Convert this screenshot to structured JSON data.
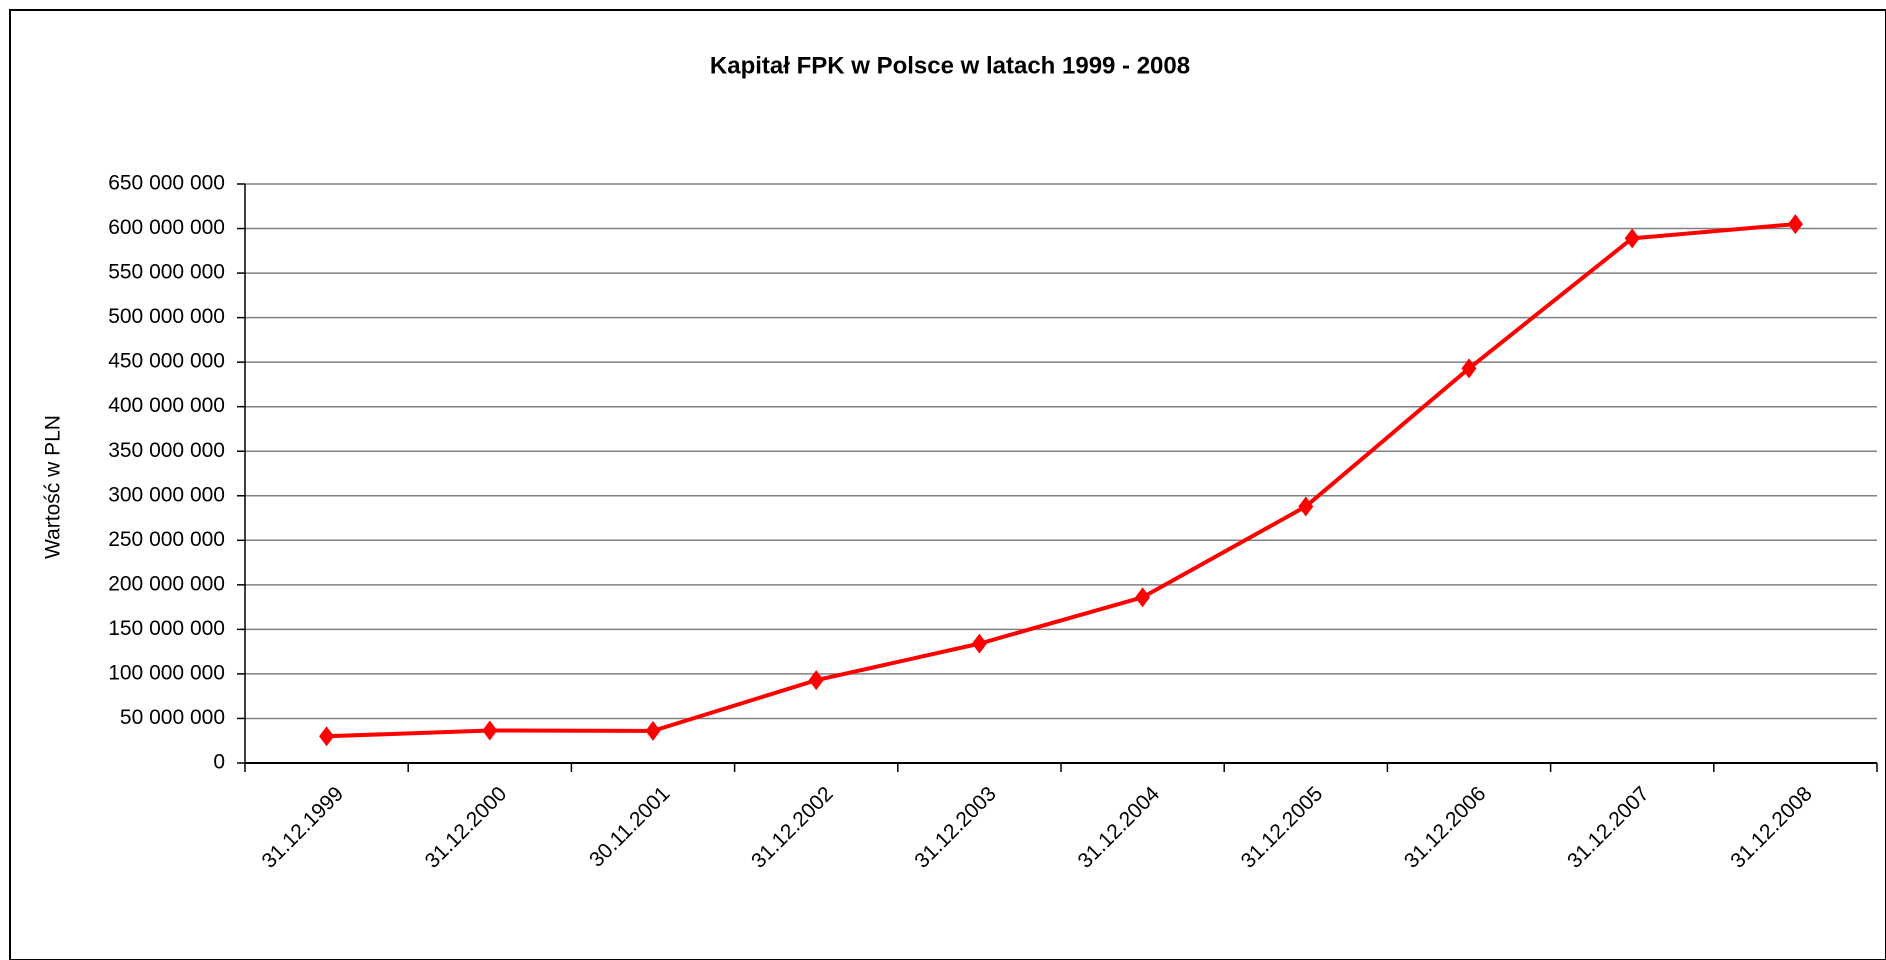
{
  "chart_data": {
    "type": "line",
    "title": "Kapitał FPK w Polsce w latach 1999 - 2008",
    "y_label": "Wartość w PLN",
    "categories": [
      "31.12.1999",
      "31.12.2000",
      "30.11.2001",
      "31.12.2002",
      "31.12.2003",
      "31.12.2004",
      "31.12.2005",
      "31.12.2006",
      "31.12.2007",
      "31.12.2008"
    ],
    "series": [
      {
        "color": "#ff0000",
        "values": [
          30000000,
          36500000,
          36000000,
          93000000,
          134000000,
          186000000,
          288000000,
          443000000,
          589000000,
          605000000
        ]
      }
    ],
    "ylim": [
      0,
      650000000
    ],
    "yticks": [
      0,
      {
        "value": 50000000,
        "label": "50 000 000"
      },
      {
        "value": 100000000,
        "label": "100 000 000"
      },
      {
        "value": 150000000,
        "label": "150 000 000"
      },
      {
        "value": 200000000,
        "label": "200 000 000"
      },
      {
        "value": 250000000,
        "label": "250 000 000"
      },
      {
        "value": 300000000,
        "label": "300 000 000"
      },
      {
        "value": 350000000,
        "label": "350 000 000"
      },
      {
        "value": 400000000,
        "label": "400 000 000"
      },
      {
        "value": 450000000,
        "label": "450 000 000"
      },
      {
        "value": 500000000,
        "label": "500 000 000"
      },
      {
        "value": 550000000,
        "label": "550 000 000"
      },
      {
        "value": 600000000,
        "label": "600 000 000"
      },
      {
        "value": 650000000,
        "label": "650 000 000"
      }
    ],
    "grid": true
  }
}
